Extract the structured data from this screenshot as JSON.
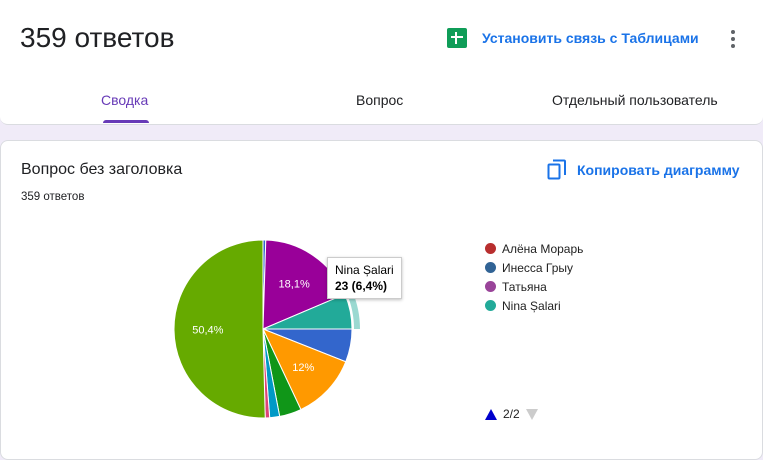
{
  "header": {
    "title": "359 ответов",
    "sheets_label": "Установить связь с Таблицами"
  },
  "tabs": [
    {
      "label": "Сводка",
      "active": true
    },
    {
      "label": "Вопрос",
      "active": false
    },
    {
      "label": "Отдельный пользователь",
      "active": false
    }
  ],
  "question": {
    "title": "Вопрос без заголовка",
    "count": "359 ответов",
    "copy_label": "Копировать диаграмму"
  },
  "chart_data": {
    "type": "pie",
    "slices": [
      {
        "name": "",
        "value": 0.5,
        "color": "#3366cc"
      },
      {
        "name": "Татьяна",
        "value": 18.1,
        "color": "#990099",
        "label": "18,1%"
      },
      {
        "name": "Nina Șalari",
        "value": 6.4,
        "color": "#22aa99"
      },
      {
        "name": "",
        "value": 6.0,
        "color": "#3366cc"
      },
      {
        "name": "",
        "value": 12.0,
        "color": "#ff9900",
        "label": "12%"
      },
      {
        "name": "",
        "value": 4.0,
        "color": "#109618"
      },
      {
        "name": "",
        "value": 1.8,
        "color": "#0099c6"
      },
      {
        "name": "",
        "value": 0.8,
        "color": "#dd4477"
      },
      {
        "name": "",
        "value": 50.4,
        "color": "#66aa00",
        "label": "50,4%"
      }
    ],
    "legend": [
      {
        "name": "Алёна Морарь",
        "color": "#b82e2e"
      },
      {
        "name": "Инесса Грыу",
        "color": "#316395"
      },
      {
        "name": "Татьяна",
        "color": "#994499"
      },
      {
        "name": "Nina Șalari",
        "color": "#22aa99"
      }
    ],
    "legend_page": "2/2",
    "tooltip": {
      "name": "Nina Șalari",
      "value": "23 (6,4%)"
    }
  }
}
